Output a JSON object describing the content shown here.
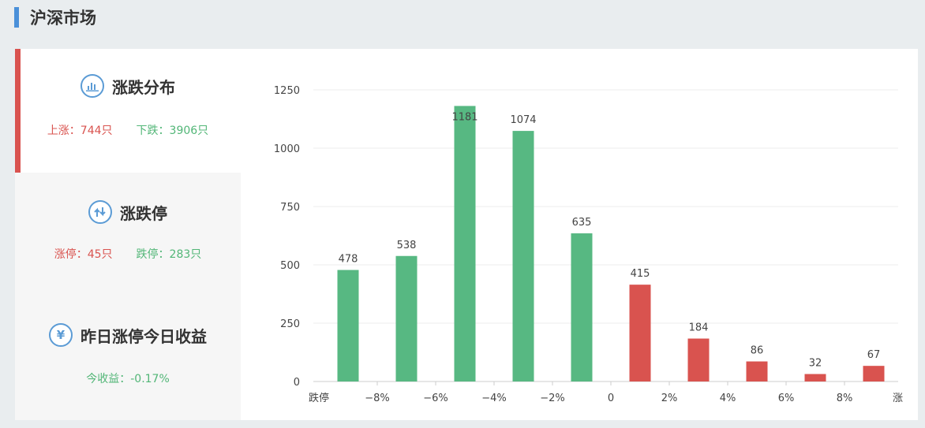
{
  "header": {
    "title": "沪深市场"
  },
  "sidebar": {
    "cards": [
      {
        "title": "涨跌分布",
        "icon": "bar-chart-icon",
        "up_label": "上涨：744只",
        "down_label": "下跌：3906只"
      },
      {
        "title": "涨跌停",
        "icon": "up-down-arrows-icon",
        "up_label": "涨停：45只",
        "down_label": "跌停：283只"
      },
      {
        "title": "昨日涨停今日收益",
        "icon": "yen-icon",
        "result_label": "今收益：-0.17%"
      }
    ]
  },
  "colors": {
    "up": "#d9534f",
    "down": "#57b882",
    "accent": "#4a90d9"
  },
  "chart_data": {
    "type": "bar",
    "categories": [
      "跌停",
      "−8%",
      "−6%",
      "−4%",
      "−2%",
      "0",
      "2%",
      "4%",
      "6%",
      "8%",
      "涨停"
    ],
    "bars": [
      {
        "value": 478,
        "color": "#57b882"
      },
      {
        "value": 538,
        "color": "#57b882"
      },
      {
        "value": 1181,
        "color": "#57b882"
      },
      {
        "value": 1074,
        "color": "#57b882"
      },
      {
        "value": 635,
        "color": "#57b882"
      },
      {
        "value": 415,
        "color": "#d9534f"
      },
      {
        "value": 184,
        "color": "#d9534f"
      },
      {
        "value": 86,
        "color": "#d9534f"
      },
      {
        "value": 32,
        "color": "#d9534f"
      },
      {
        "value": 67,
        "color": "#d9534f"
      }
    ],
    "yticks": [
      0,
      250,
      500,
      750,
      1000,
      1250
    ],
    "ylim": [
      0,
      1250
    ],
    "grid": true
  }
}
